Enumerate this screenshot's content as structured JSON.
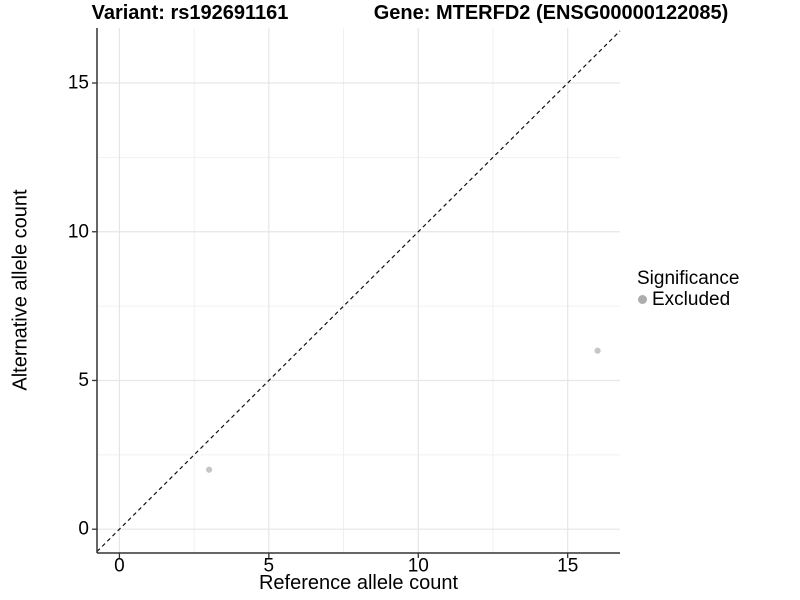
{
  "chart_data": {
    "type": "scatter",
    "titles": {
      "left": "Variant: rs192691161",
      "right": "Gene: MTERFD2 (ENSG00000122085)"
    },
    "xlabel": "Reference allele count",
    "ylabel": "Alternative allele count",
    "x_ticks": [
      0,
      5,
      10,
      15
    ],
    "y_ticks": [
      0,
      5,
      10,
      15
    ],
    "x_minor_ticks": [
      2.5,
      7.5,
      12.5
    ],
    "y_minor_ticks": [
      2.5,
      7.5,
      12.5
    ],
    "xlim": [
      -0.75,
      16.75
    ],
    "ylim": [
      -0.8,
      16.85
    ],
    "grid": true,
    "legend_position": "right",
    "reference_line": {
      "type": "identity",
      "slope": 1,
      "intercept": 0,
      "style": "dashed",
      "color": "#111111"
    },
    "series": [
      {
        "name": "Excluded",
        "color": "#c6c6c6",
        "points": [
          {
            "x": 3,
            "y": 2
          },
          {
            "x": 16,
            "y": 6
          }
        ]
      }
    ],
    "legend": {
      "title": "Significance",
      "items": [
        {
          "label": "Excluded",
          "color": "#adadad"
        }
      ]
    },
    "colors": {
      "grid_major": "#e6e6e6",
      "grid_minor": "#ededed",
      "axis_line": "#333333",
      "tick_mark": "#333333",
      "text": "#000000"
    }
  }
}
